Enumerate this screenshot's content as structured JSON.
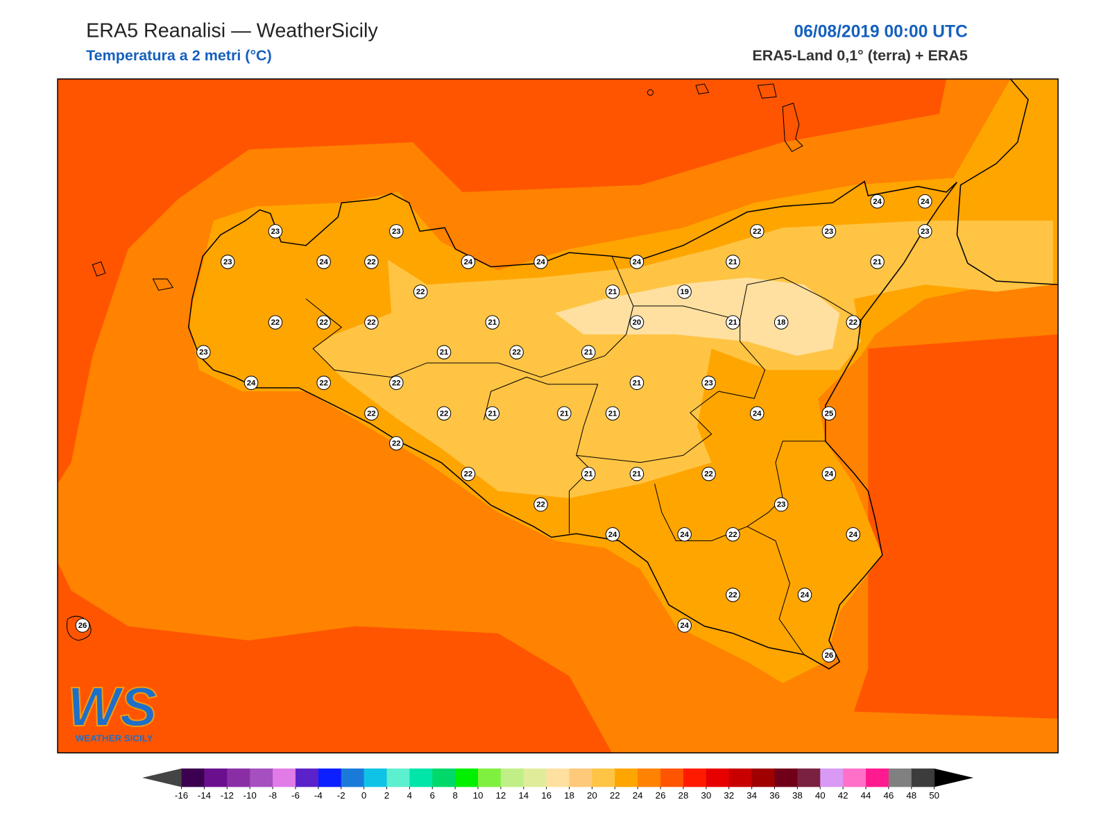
{
  "header": {
    "title": "ERA5 Reanalisi — WeatherSicily",
    "subtitle": "Temperatura a 2 metri (°C)",
    "date": "06/08/2019 00:00 UTC",
    "source": "ERA5-Land 0,1° (terra) + ERA5"
  },
  "logo": {
    "mark": "WS",
    "name": "WEATHER SICILY"
  },
  "stations": [
    23,
    23,
    23,
    24,
    22,
    24,
    24,
    24,
    22,
    23,
    24,
    24,
    23,
    21,
    21,
    22,
    21,
    19,
    22,
    22,
    22,
    21,
    20,
    21,
    18,
    22,
    23,
    21,
    22,
    21,
    24,
    22,
    22,
    21,
    23,
    22,
    22,
    21,
    21,
    21,
    24,
    25,
    22,
    22,
    21,
    21,
    22,
    24,
    23,
    22,
    24,
    24,
    22,
    24,
    22,
    24,
    24,
    26,
    26
  ],
  "colorbar": {
    "ticks": [
      -16,
      -14,
      -12,
      -10,
      -8,
      -6,
      -4,
      -2,
      0,
      2,
      4,
      6,
      8,
      10,
      12,
      14,
      16,
      18,
      20,
      22,
      24,
      26,
      28,
      30,
      32,
      34,
      36,
      38,
      40,
      42,
      44,
      46,
      48,
      50
    ],
    "colors": [
      "#3b0050",
      "#6a0f8e",
      "#8a2ea6",
      "#a54fc0",
      "#e07be8",
      "#5a22c8",
      "#0c1fff",
      "#1a7ad9",
      "#0fc3e6",
      "#5cf0d0",
      "#00e5a8",
      "#00d86a",
      "#00f000",
      "#80f040",
      "#c0ef88",
      "#e0ec9a",
      "#ffe0a0",
      "#ffc97a",
      "#ffc444",
      "#ffa500",
      "#ff8200",
      "#ff5500",
      "#ff1a00",
      "#e60000",
      "#c80000",
      "#a00000",
      "#700018",
      "#7a2040",
      "#d89af5",
      "#ff70c8",
      "#ff1a90",
      "#808080",
      "#3c3c3c"
    ],
    "under": "#444444",
    "over": "#000000"
  }
}
